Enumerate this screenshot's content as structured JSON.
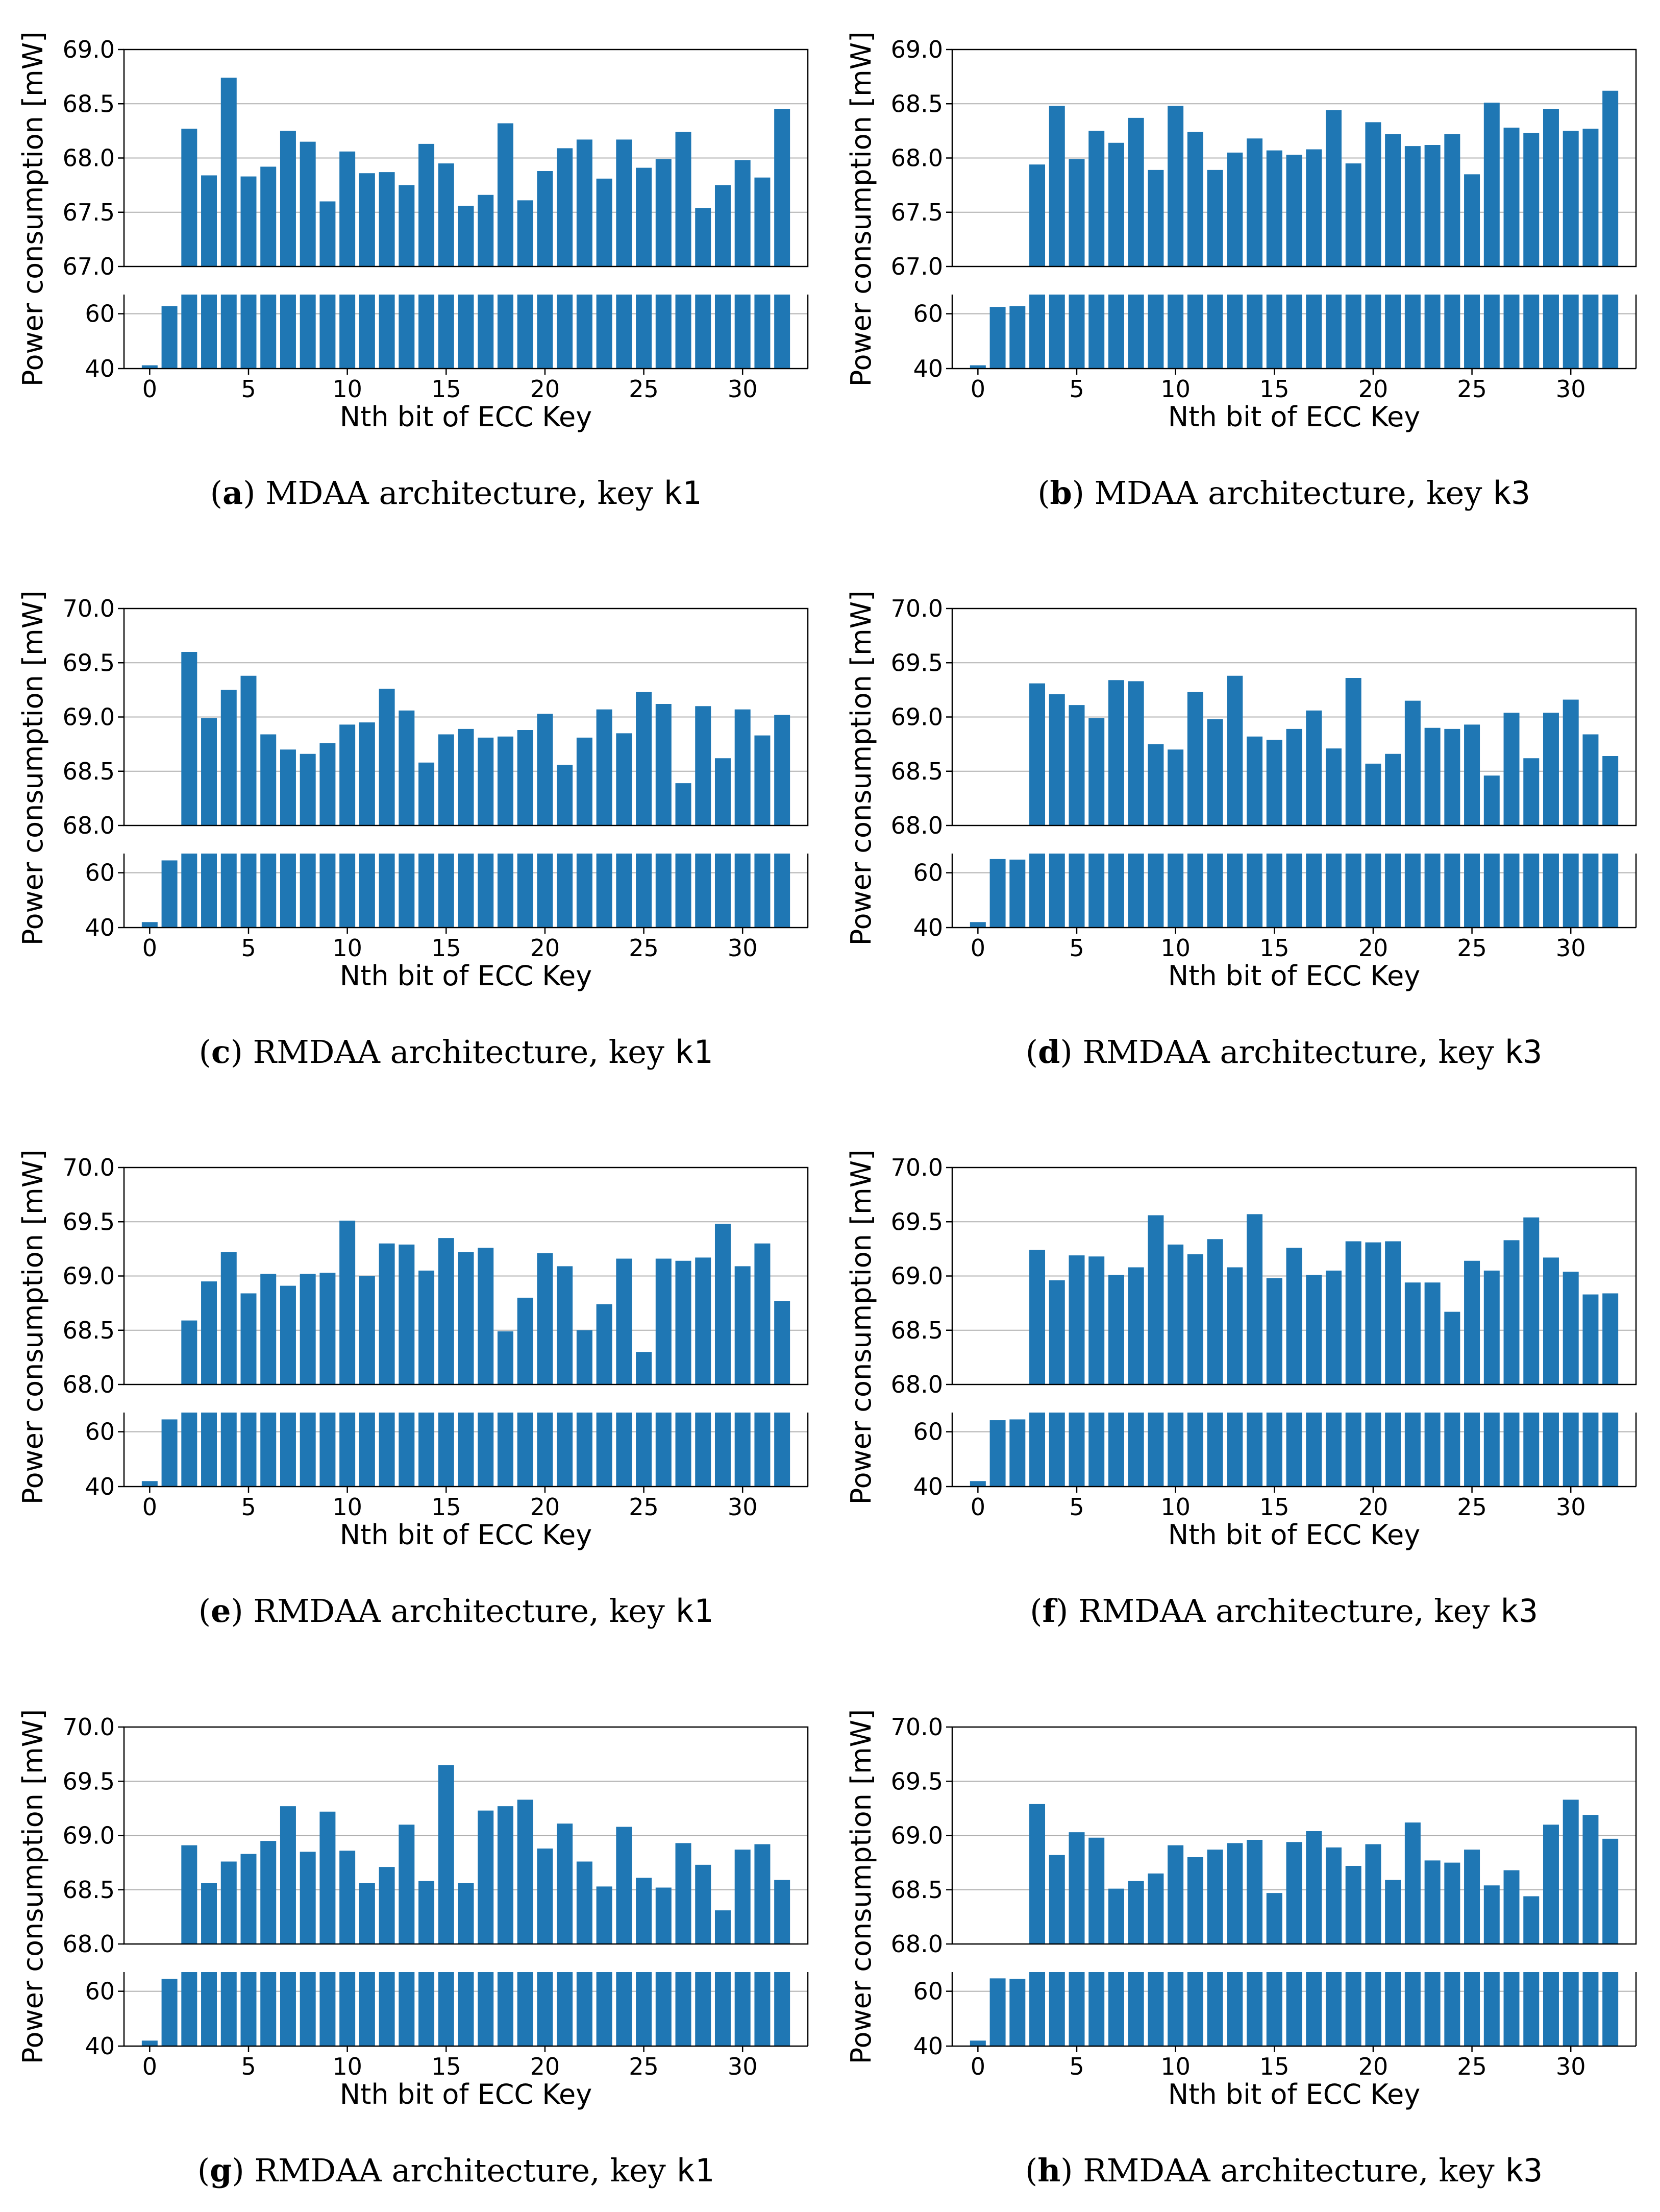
{
  "chart_data": [
    {
      "type": "bar",
      "caption": {
        "letter": "a",
        "text": ") MDAA architecture, key ",
        "key": "k1"
      },
      "xlabel": "Nth bit of ECC Key",
      "ylabel": "Power consumption [mW]",
      "x_ticks": [
        0,
        5,
        10,
        15,
        20,
        25,
        30
      ],
      "upper_ylim": [
        67.0,
        69.0
      ],
      "upper_ticks": [
        "67.0",
        "67.5",
        "68.0",
        "68.5",
        "69.0"
      ],
      "lower_ylim": [
        40,
        67
      ],
      "lower_ticks": [
        "40",
        "60"
      ],
      "grid": "horizontal",
      "color": "#1f77b4",
      "x": [
        0,
        1,
        2,
        3,
        4,
        5,
        6,
        7,
        8,
        9,
        10,
        11,
        12,
        13,
        14,
        15,
        16,
        17,
        18,
        19,
        20,
        21,
        22,
        23,
        24,
        25,
        26,
        27,
        28,
        29,
        30,
        31,
        32
      ],
      "values": [
        41.2,
        62.8,
        68.27,
        67.84,
        68.74,
        67.83,
        67.92,
        68.25,
        68.15,
        67.6,
        68.06,
        67.86,
        67.87,
        67.75,
        68.13,
        67.95,
        67.56,
        67.66,
        68.32,
        67.61,
        67.88,
        68.09,
        68.17,
        67.81,
        68.17,
        67.91,
        67.99,
        68.24,
        67.54,
        67.75,
        67.98,
        67.82,
        68.45
      ]
    },
    {
      "type": "bar",
      "caption": {
        "letter": "b",
        "text": ") MDAA architecture, key ",
        "key": "k3"
      },
      "xlabel": "Nth bit of ECC Key",
      "ylabel": "Power consumption [mW]",
      "x_ticks": [
        0,
        5,
        10,
        15,
        20,
        25,
        30
      ],
      "upper_ylim": [
        67.0,
        69.0
      ],
      "upper_ticks": [
        "67.0",
        "67.5",
        "68.0",
        "68.5",
        "69.0"
      ],
      "lower_ylim": [
        40,
        67
      ],
      "lower_ticks": [
        "40",
        "60"
      ],
      "grid": "horizontal",
      "color": "#1f77b4",
      "x": [
        0,
        1,
        2,
        3,
        4,
        5,
        6,
        7,
        8,
        9,
        10,
        11,
        12,
        13,
        14,
        15,
        16,
        17,
        18,
        19,
        20,
        21,
        22,
        23,
        24,
        25,
        26,
        27,
        28,
        29,
        30,
        31,
        32
      ],
      "values": [
        41.2,
        62.5,
        62.8,
        67.94,
        68.48,
        67.99,
        68.25,
        68.14,
        68.37,
        67.89,
        68.48,
        68.24,
        67.89,
        68.05,
        68.18,
        68.07,
        68.03,
        68.08,
        68.44,
        67.95,
        68.33,
        68.22,
        68.11,
        68.12,
        68.22,
        67.85,
        68.51,
        68.28,
        68.23,
        68.45,
        68.25,
        68.27,
        68.62
      ]
    },
    {
      "type": "bar",
      "caption": {
        "letter": "c",
        "text": ") RMDAA architecture, key ",
        "key": "k1"
      },
      "xlabel": "Nth bit of ECC Key",
      "ylabel": "Power consumption [mW]",
      "x_ticks": [
        0,
        5,
        10,
        15,
        20,
        25,
        30
      ],
      "upper_ylim": [
        68.0,
        70.0
      ],
      "upper_ticks": [
        "68.0",
        "68.5",
        "69.0",
        "69.5",
        "70.0"
      ],
      "lower_ylim": [
        40,
        67
      ],
      "lower_ticks": [
        "40",
        "60"
      ],
      "grid": "horizontal",
      "color": "#1f77b4",
      "x": [
        0,
        1,
        2,
        3,
        4,
        5,
        6,
        7,
        8,
        9,
        10,
        11,
        12,
        13,
        14,
        15,
        16,
        17,
        18,
        19,
        20,
        21,
        22,
        23,
        24,
        25,
        26,
        27,
        28,
        29,
        30,
        31,
        32
      ],
      "values": [
        42.0,
        64.5,
        69.6,
        68.99,
        69.25,
        69.38,
        68.84,
        68.7,
        68.66,
        68.76,
        68.93,
        68.95,
        69.26,
        69.06,
        68.58,
        68.84,
        68.89,
        68.81,
        68.82,
        68.88,
        69.03,
        68.56,
        68.81,
        69.07,
        68.85,
        69.23,
        69.12,
        68.39,
        69.1,
        68.62,
        69.07,
        68.83,
        69.02
      ]
    },
    {
      "type": "bar",
      "caption": {
        "letter": "d",
        "text": ") RMDAA architecture, key ",
        "key": "k3"
      },
      "xlabel": "Nth bit of ECC Key",
      "ylabel": "Power consumption [mW]",
      "x_ticks": [
        0,
        5,
        10,
        15,
        20,
        25,
        30
      ],
      "upper_ylim": [
        68.0,
        70.0
      ],
      "upper_ticks": [
        "68.0",
        "68.5",
        "69.0",
        "69.5",
        "70.0"
      ],
      "lower_ylim": [
        40,
        67
      ],
      "lower_ticks": [
        "40",
        "60"
      ],
      "grid": "horizontal",
      "color": "#1f77b4",
      "x": [
        0,
        1,
        2,
        3,
        4,
        5,
        6,
        7,
        8,
        9,
        10,
        11,
        12,
        13,
        14,
        15,
        16,
        17,
        18,
        19,
        20,
        21,
        22,
        23,
        24,
        25,
        26,
        27,
        28,
        29,
        30,
        31,
        32
      ],
      "values": [
        42.0,
        65.0,
        64.8,
        69.31,
        69.21,
        69.11,
        68.99,
        69.34,
        69.33,
        68.75,
        68.7,
        69.23,
        68.98,
        69.38,
        68.82,
        68.79,
        68.89,
        69.06,
        68.71,
        69.36,
        68.57,
        68.66,
        69.15,
        68.9,
        68.89,
        68.93,
        68.46,
        69.04,
        68.62,
        69.04,
        69.16,
        68.84,
        68.64
      ]
    },
    {
      "type": "bar",
      "caption": {
        "letter": "e",
        "text": ") RMDAA architecture, key ",
        "key": "k1"
      },
      "xlabel": "Nth bit of ECC Key",
      "ylabel": "Power consumption [mW]",
      "x_ticks": [
        0,
        5,
        10,
        15,
        20,
        25,
        30
      ],
      "upper_ylim": [
        68.0,
        70.0
      ],
      "upper_ticks": [
        "68.0",
        "68.5",
        "69.0",
        "69.5",
        "70.0"
      ],
      "lower_ylim": [
        40,
        67
      ],
      "lower_ticks": [
        "40",
        "60"
      ],
      "grid": "horizontal",
      "color": "#1f77b4",
      "x": [
        0,
        1,
        2,
        3,
        4,
        5,
        6,
        7,
        8,
        9,
        10,
        11,
        12,
        13,
        14,
        15,
        16,
        17,
        18,
        19,
        20,
        21,
        22,
        23,
        24,
        25,
        26,
        27,
        28,
        29,
        30,
        31,
        32
      ],
      "values": [
        42.0,
        64.5,
        68.59,
        68.95,
        69.22,
        68.84,
        69.02,
        68.91,
        69.02,
        69.03,
        69.51,
        69.0,
        69.3,
        69.29,
        69.05,
        69.35,
        69.22,
        69.26,
        68.49,
        68.8,
        69.21,
        69.09,
        68.5,
        68.74,
        69.16,
        68.3,
        69.16,
        69.14,
        69.17,
        69.48,
        69.09,
        69.3,
        68.77
      ]
    },
    {
      "type": "bar",
      "caption": {
        "letter": "f",
        "text": ") RMDAA architecture, key ",
        "key": "k3"
      },
      "xlabel": "Nth bit of ECC Key",
      "ylabel": "Power consumption [mW]",
      "x_ticks": [
        0,
        5,
        10,
        15,
        20,
        25,
        30
      ],
      "upper_ylim": [
        68.0,
        70.0
      ],
      "upper_ticks": [
        "68.0",
        "68.5",
        "69.0",
        "69.5",
        "70.0"
      ],
      "lower_ylim": [
        40,
        67
      ],
      "lower_ticks": [
        "40",
        "60"
      ],
      "grid": "horizontal",
      "color": "#1f77b4",
      "x": [
        0,
        1,
        2,
        3,
        4,
        5,
        6,
        7,
        8,
        9,
        10,
        11,
        12,
        13,
        14,
        15,
        16,
        17,
        18,
        19,
        20,
        21,
        22,
        23,
        24,
        25,
        26,
        27,
        28,
        29,
        30,
        31,
        32
      ],
      "values": [
        42.0,
        64.2,
        64.5,
        69.24,
        68.96,
        69.19,
        69.18,
        69.01,
        69.08,
        69.56,
        69.29,
        69.2,
        69.34,
        69.08,
        69.57,
        68.98,
        69.26,
        69.01,
        69.05,
        69.32,
        69.31,
        69.32,
        68.94,
        68.94,
        68.67,
        69.14,
        69.05,
        69.33,
        69.54,
        69.17,
        69.04,
        68.83,
        68.84
      ]
    },
    {
      "type": "bar",
      "caption": {
        "letter": "g",
        "text": ") RMDAA architecture, key ",
        "key": "k1"
      },
      "xlabel": "Nth bit of ECC Key",
      "ylabel": "Power consumption [mW]",
      "x_ticks": [
        0,
        5,
        10,
        15,
        20,
        25,
        30
      ],
      "upper_ylim": [
        68.0,
        70.0
      ],
      "upper_ticks": [
        "68.0",
        "68.5",
        "69.0",
        "69.5",
        "70.0"
      ],
      "lower_ylim": [
        40,
        67
      ],
      "lower_ticks": [
        "40",
        "60"
      ],
      "grid": "horizontal",
      "color": "#1f77b4",
      "x": [
        0,
        1,
        2,
        3,
        4,
        5,
        6,
        7,
        8,
        9,
        10,
        11,
        12,
        13,
        14,
        15,
        16,
        17,
        18,
        19,
        20,
        21,
        22,
        23,
        24,
        25,
        26,
        27,
        28,
        29,
        30,
        31,
        32
      ],
      "values": [
        42.0,
        64.5,
        68.91,
        68.56,
        68.76,
        68.83,
        68.95,
        69.27,
        68.85,
        69.22,
        68.86,
        68.56,
        68.71,
        69.1,
        68.58,
        69.65,
        68.56,
        69.23,
        69.27,
        69.33,
        68.88,
        69.11,
        68.76,
        68.53,
        69.08,
        68.61,
        68.52,
        68.93,
        68.73,
        68.31,
        68.87,
        68.92,
        68.59
      ]
    },
    {
      "type": "bar",
      "caption": {
        "letter": "h",
        "text": ") RMDAA architecture, key ",
        "key": "k3"
      },
      "xlabel": "Nth bit of ECC Key",
      "ylabel": "Power consumption [mW]",
      "x_ticks": [
        0,
        5,
        10,
        15,
        20,
        25,
        30
      ],
      "upper_ylim": [
        68.0,
        70.0
      ],
      "upper_ticks": [
        "68.0",
        "68.5",
        "69.0",
        "69.5",
        "70.0"
      ],
      "lower_ylim": [
        40,
        67
      ],
      "lower_ticks": [
        "40",
        "60"
      ],
      "grid": "horizontal",
      "color": "#1f77b4",
      "x": [
        0,
        1,
        2,
        3,
        4,
        5,
        6,
        7,
        8,
        9,
        10,
        11,
        12,
        13,
        14,
        15,
        16,
        17,
        18,
        19,
        20,
        21,
        22,
        23,
        24,
        25,
        26,
        27,
        28,
        29,
        30,
        31,
        32
      ],
      "values": [
        42.0,
        64.7,
        64.5,
        69.29,
        68.82,
        69.03,
        68.98,
        68.51,
        68.58,
        68.65,
        68.91,
        68.8,
        68.87,
        68.93,
        68.96,
        68.47,
        68.94,
        69.04,
        68.89,
        68.72,
        68.92,
        68.59,
        69.12,
        68.77,
        68.75,
        68.87,
        68.54,
        68.68,
        68.44,
        69.1,
        69.33,
        69.19,
        68.97
      ]
    }
  ]
}
